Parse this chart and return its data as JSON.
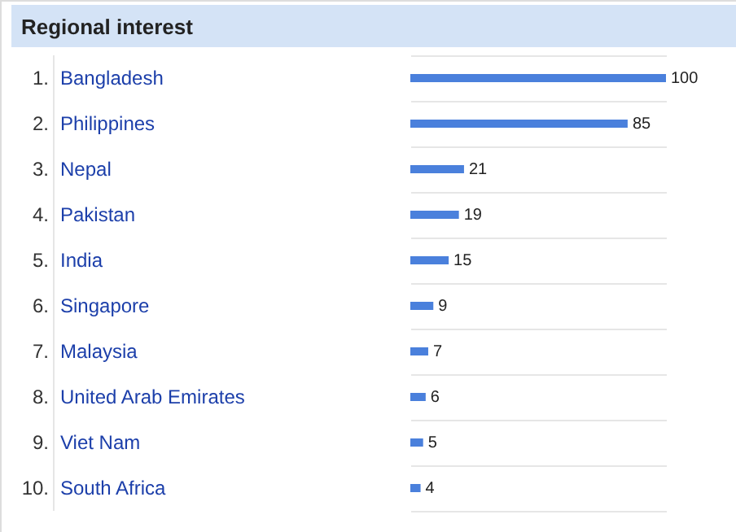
{
  "chart_data": {
    "type": "bar",
    "orientation": "horizontal",
    "title": "Regional interest",
    "categories": [
      "1. Bangladesh",
      "2. Philippines",
      "3. Nepal",
      "4. Pakistan",
      "5. India",
      "6. Singapore",
      "7. Malaysia",
      "8. United Arab Emirates",
      "9. Viet Nam",
      "10. South Africa"
    ],
    "values": [
      100,
      85,
      21,
      19,
      15,
      9,
      7,
      6,
      5,
      4
    ],
    "color": "#4a80dc",
    "xlim": [
      0,
      100
    ],
    "data_labels": true,
    "grid": "y"
  }
}
